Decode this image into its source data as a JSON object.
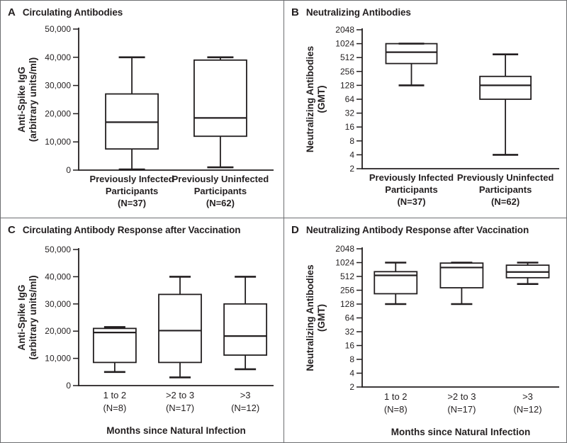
{
  "figure": {
    "background": "#ffffff",
    "line_color": "#231f20",
    "border_color": "#6d6e71"
  },
  "chart_data": [
    {
      "panel": "A",
      "type": "box",
      "title": "Circulating Antibodies",
      "scale": "linear",
      "ylim": [
        0,
        50000
      ],
      "ylabel_lines": [
        "Anti-Spike IgG",
        "(arbitrary units/ml)"
      ],
      "yticks": [
        {
          "value": 0,
          "label": "0"
        },
        {
          "value": 10000,
          "label": "10,000"
        },
        {
          "value": 20000,
          "label": "20,000"
        },
        {
          "value": 30000,
          "label": "30,000"
        },
        {
          "value": 40000,
          "label": "40,000"
        },
        {
          "value": 50000,
          "label": "50,000"
        }
      ],
      "xlabel": "",
      "groups": [
        {
          "label_lines": [
            "Previously Infected",
            "Participants",
            "(N=37)"
          ],
          "min": 250,
          "q1": 7500,
          "median": 17000,
          "q3": 27000,
          "max": 40000
        },
        {
          "label_lines": [
            "Previously Uninfected",
            "Participants",
            "(N=62)"
          ],
          "min": 1000,
          "q1": 12000,
          "median": 18500,
          "q3": 39000,
          "max": 40000
        }
      ]
    },
    {
      "panel": "B",
      "type": "box",
      "title": "Neutralizing Antibodies",
      "scale": "log2",
      "ylim": [
        2,
        2048
      ],
      "ylabel_lines": [
        "Neutralizing Antibodies",
        "(GMT)"
      ],
      "yticks": [
        {
          "value": 2,
          "label": "2"
        },
        {
          "value": 4,
          "label": "4"
        },
        {
          "value": 8,
          "label": "8"
        },
        {
          "value": 16,
          "label": "16"
        },
        {
          "value": 32,
          "label": "32"
        },
        {
          "value": 64,
          "label": "64"
        },
        {
          "value": 128,
          "label": "128"
        },
        {
          "value": 256,
          "label": "256"
        },
        {
          "value": 512,
          "label": "512"
        },
        {
          "value": 1024,
          "label": "1024"
        },
        {
          "value": 2048,
          "label": "2048"
        }
      ],
      "xlabel": "",
      "groups": [
        {
          "label_lines": [
            "Previously Infected",
            "Participants",
            "(N=37)"
          ],
          "min": 128,
          "q1": 380,
          "median": 670,
          "q3": 1024,
          "max": 1024
        },
        {
          "label_lines": [
            "Previously Uninfected",
            "Participants",
            "(N=62)"
          ],
          "min": 4,
          "q1": 64,
          "median": 128,
          "q3": 200,
          "max": 600
        }
      ]
    },
    {
      "panel": "C",
      "type": "box",
      "title": "Circulating Antibody Response after Vaccination",
      "scale": "linear",
      "ylim": [
        0,
        50000
      ],
      "ylabel_lines": [
        "Anti-Spike IgG",
        "(arbitrary units/ml)"
      ],
      "yticks": [
        {
          "value": 0,
          "label": "0"
        },
        {
          "value": 10000,
          "label": "10,000"
        },
        {
          "value": 20000,
          "label": "20,000"
        },
        {
          "value": 30000,
          "label": "30,000"
        },
        {
          "value": 40000,
          "label": "40,000"
        },
        {
          "value": 50000,
          "label": "50,000"
        }
      ],
      "xlabel": "Months since Natural Infection",
      "groups": [
        {
          "label_lines": [
            "1 to 2",
            "(N=8)"
          ],
          "min": 5000,
          "q1": 8500,
          "median": 19500,
          "q3": 21000,
          "max": 21500
        },
        {
          "label_lines": [
            ">2 to 3",
            "(N=17)"
          ],
          "min": 3000,
          "q1": 8500,
          "median": 20200,
          "q3": 33500,
          "max": 40000
        },
        {
          "label_lines": [
            ">3",
            "(N=12)"
          ],
          "min": 6000,
          "q1": 11200,
          "median": 18200,
          "q3": 30000,
          "max": 40000
        }
      ]
    },
    {
      "panel": "D",
      "type": "box",
      "title": "Neutralizing Antibody Response after Vaccination",
      "scale": "log2",
      "ylim": [
        2,
        2048
      ],
      "ylabel_lines": [
        "Neutralizing Antibodies",
        "(GMT)"
      ],
      "yticks": [
        {
          "value": 2,
          "label": "2"
        },
        {
          "value": 4,
          "label": "4"
        },
        {
          "value": 8,
          "label": "8"
        },
        {
          "value": 16,
          "label": "16"
        },
        {
          "value": 32,
          "label": "32"
        },
        {
          "value": 64,
          "label": "64"
        },
        {
          "value": 128,
          "label": "128"
        },
        {
          "value": 256,
          "label": "256"
        },
        {
          "value": 512,
          "label": "512"
        },
        {
          "value": 1024,
          "label": "1024"
        },
        {
          "value": 2048,
          "label": "2048"
        }
      ],
      "xlabel": "Months since Natural Infection",
      "groups": [
        {
          "label_lines": [
            "1 to 2",
            "(N=8)"
          ],
          "min": 128,
          "q1": 215,
          "median": 540,
          "q3": 650,
          "max": 1024
        },
        {
          "label_lines": [
            ">2 to 3",
            "(N=17)"
          ],
          "min": 128,
          "q1": 290,
          "median": 800,
          "q3": 1000,
          "max": 1024
        },
        {
          "label_lines": [
            ">3",
            "(N=12)"
          ],
          "min": 350,
          "q1": 480,
          "median": 640,
          "q3": 900,
          "max": 1024
        }
      ]
    }
  ]
}
